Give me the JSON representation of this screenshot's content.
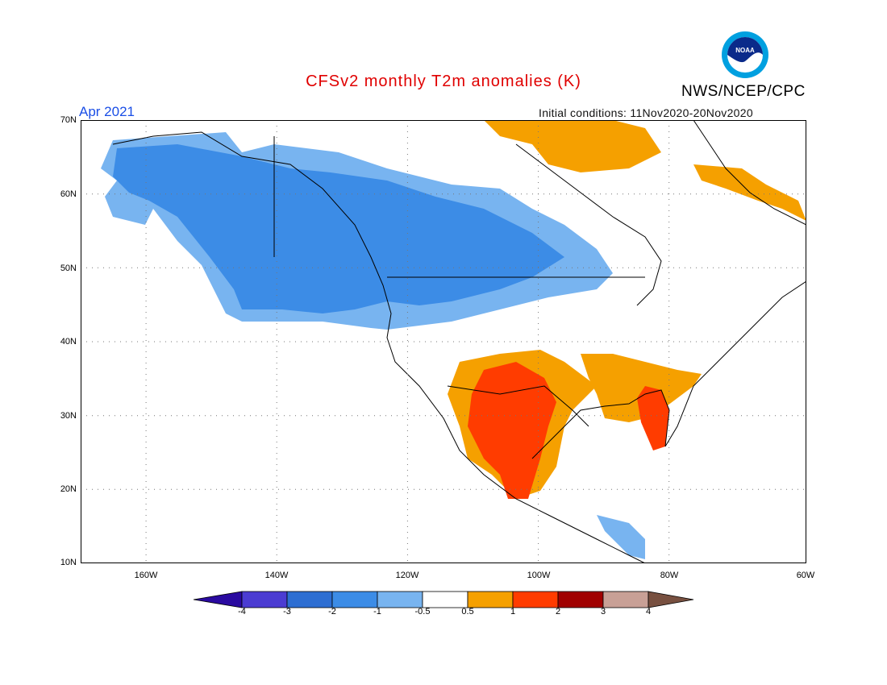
{
  "header": {
    "title": "CFSv2 monthly T2m anomalies (K)",
    "agency": "NWS/NCEP/CPC",
    "logo_text": "NOAA",
    "month": "Apr 2021",
    "initial_conditions": "Initial conditions: 11Nov2020-20Nov2020"
  },
  "map": {
    "lat_labels": [
      "70N",
      "60N",
      "50N",
      "40N",
      "30N",
      "20N",
      "10N"
    ],
    "lon_labels": [
      "160W",
      "140W",
      "120W",
      "100W",
      "80W",
      "60W"
    ],
    "lat_range": [
      10,
      70
    ],
    "lon_range": [
      -171,
      -60
    ],
    "grid": "dotted",
    "regions": [
      {
        "name": "alaska-cold",
        "anomaly": "-2 to -1",
        "color": "#3c8ce6"
      },
      {
        "name": "canada-cold",
        "anomaly": "-2 to -1",
        "color": "#3c8ce6"
      },
      {
        "name": "northern-us-cool",
        "anomaly": "-1 to -0.5",
        "color": "#78b4f0"
      },
      {
        "name": "southwest-us-mexico-warm",
        "anomaly": "1 to 2",
        "color": "#ff3c00"
      },
      {
        "name": "southern-plains-warm",
        "anomaly": "0.5 to 1",
        "color": "#f5a000"
      },
      {
        "name": "southeast-us-warm",
        "anomaly": "0.5 to 1",
        "color": "#f5a000"
      },
      {
        "name": "florida-warm",
        "anomaly": "1 to 2",
        "color": "#ff3c00"
      },
      {
        "name": "greenland-arctic-warm",
        "anomaly": "0.5 to 1",
        "color": "#f5a000"
      },
      {
        "name": "central-america-cool",
        "anomaly": "-1 to -0.5",
        "color": "#78b4f0"
      }
    ]
  },
  "colorbar": {
    "labels": [
      "-4",
      "-3",
      "-2",
      "-1",
      "-0.5",
      "0.5",
      "1",
      "2",
      "3",
      "4"
    ],
    "colors": [
      "#2a0aa0",
      "#4b3cd2",
      "#2d6ed2",
      "#3c8ce6",
      "#78b4f0",
      "#ffffff",
      "#f5a000",
      "#ff3c00",
      "#a00000",
      "#c8a096",
      "#785040"
    ]
  }
}
